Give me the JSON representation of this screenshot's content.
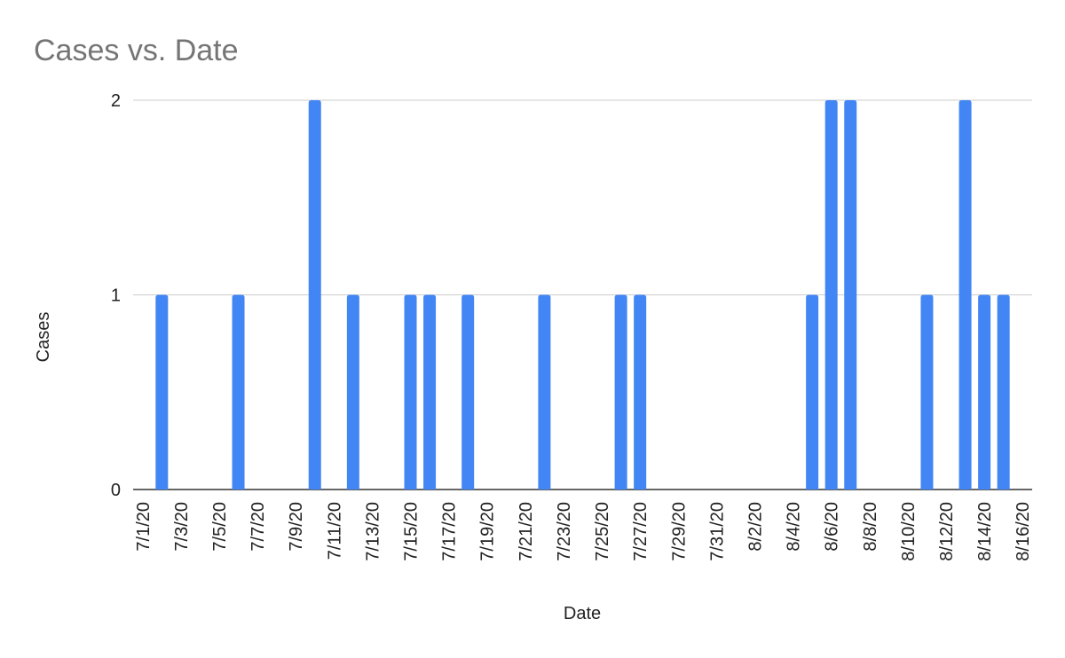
{
  "chart_data": {
    "type": "bar",
    "title": "Cases vs. Date",
    "x_label": "Date",
    "y_label": "Cases",
    "categories": [
      "7/1/20",
      null,
      "7/3/20",
      null,
      "7/5/20",
      null,
      "7/7/20",
      null,
      "7/9/20",
      null,
      "7/11/20",
      null,
      "7/13/20",
      null,
      "7/15/20",
      null,
      "7/17/20",
      null,
      "7/19/20",
      null,
      "7/21/20",
      null,
      "7/23/20",
      null,
      "7/25/20",
      null,
      "7/27/20",
      null,
      "7/29/20",
      null,
      "7/31/20",
      null,
      "8/2/20",
      null,
      "8/4/20",
      null,
      "8/6/20",
      null,
      "8/8/20",
      null,
      "8/10/20",
      null,
      "8/12/20",
      null,
      "8/14/20",
      null,
      "8/16/20"
    ],
    "values": [
      0,
      1,
      0,
      0,
      0,
      1,
      0,
      0,
      0,
      2,
      0,
      1,
      0,
      0,
      1,
      1,
      0,
      1,
      0,
      0,
      0,
      1,
      0,
      0,
      0,
      1,
      1,
      0,
      0,
      0,
      0,
      0,
      0,
      0,
      0,
      1,
      2,
      2,
      0,
      0,
      0,
      1,
      0,
      2,
      1,
      1,
      0
    ],
    "color": "#4285f4",
    "ylim": [
      0,
      2
    ],
    "yticks": [
      0,
      1,
      2
    ],
    "grid": true
  }
}
